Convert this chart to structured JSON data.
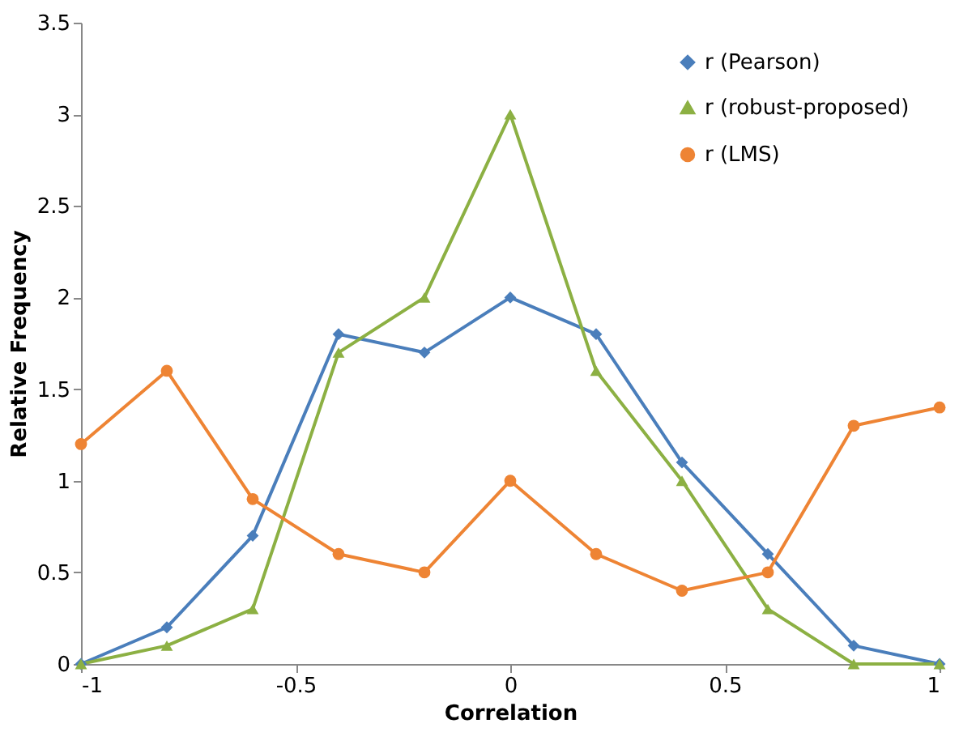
{
  "chart_data": {
    "type": "line",
    "xlabel": "Correlation",
    "ylabel": "Relative Frequency",
    "x": [
      -1,
      -0.8,
      -0.6,
      -0.4,
      -0.2,
      0,
      0.2,
      0.4,
      0.6,
      0.8,
      1
    ],
    "series": [
      {
        "name": "r (Pearson)",
        "color": "#4a7ebb",
        "marker": "diamond",
        "values": [
          0,
          0.2,
          0.7,
          1.8,
          1.7,
          2.0,
          1.8,
          1.1,
          0.6,
          0.1,
          0
        ]
      },
      {
        "name": "r (robust-proposed)",
        "color": "#8cb043",
        "marker": "triangle",
        "values": [
          0,
          0.1,
          0.3,
          1.7,
          2.0,
          3.0,
          1.6,
          1.0,
          0.3,
          0,
          0
        ]
      },
      {
        "name": "r (LMS)",
        "color": "#ee8434",
        "marker": "circle",
        "values": [
          1.2,
          1.6,
          0.9,
          0.6,
          0.5,
          1.0,
          0.6,
          0.4,
          0.5,
          1.3,
          1.4
        ]
      }
    ],
    "xlim": [
      -1,
      1
    ],
    "xticks": [
      -1,
      -0.5,
      0,
      0.5,
      1
    ],
    "ylim": [
      0,
      3.5
    ],
    "yticks": [
      0,
      0.5,
      1,
      1.5,
      2,
      2.5,
      3,
      3.5
    ],
    "grid": false,
    "legend": "top right",
    "line_style": "solid"
  }
}
